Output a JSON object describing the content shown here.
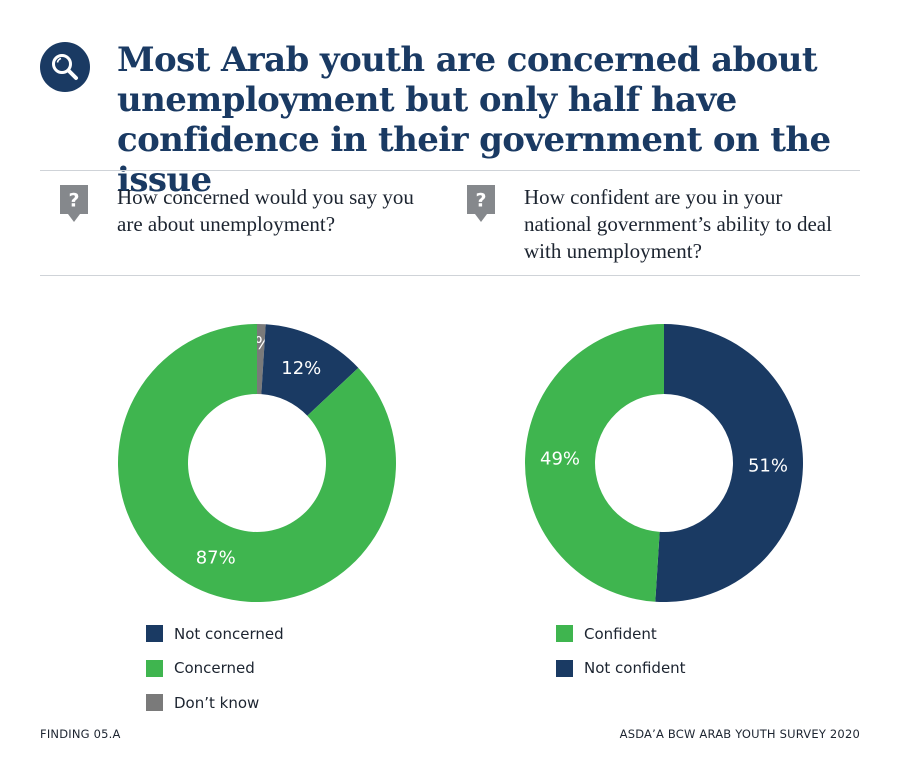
{
  "header": {
    "title_icon": "magnifier-icon",
    "title": "Most Arab youth are concerned about unemployment but only half have confidence in their government on the issue"
  },
  "colors": {
    "navy": "#1a3a63",
    "green": "#3fb54f",
    "grey": "#7a7a7a",
    "white": "#ffffff"
  },
  "questions": [
    {
      "icon": "question-bubble-icon",
      "text": "How concerned would you say you are about unemployment?"
    },
    {
      "icon": "question-bubble-icon",
      "text": "How confident are you in your national government’s ability to deal with unemployment?"
    }
  ],
  "chart_data": [
    {
      "type": "pie",
      "variant": "donut",
      "question": "How concerned would you say you are about unemployment?",
      "slices": [
        {
          "name": "Don't know",
          "value": 1,
          "label": "1%",
          "color": "#7a7a7a"
        },
        {
          "name": "Not concerned",
          "value": 12,
          "label": "12%",
          "color": "#1a3a63"
        },
        {
          "name": "Concerned",
          "value": 87,
          "label": "87%",
          "color": "#3fb54f"
        }
      ],
      "legend": [
        {
          "label": "Not concerned",
          "color": "#1a3a63"
        },
        {
          "label": "Concerned",
          "color": "#3fb54f"
        },
        {
          "label": "Don’t know",
          "color": "#7a7a7a"
        }
      ]
    },
    {
      "type": "pie",
      "variant": "donut",
      "question": "How confident are you in your national government’s ability to deal with unemployment?",
      "slices": [
        {
          "name": "Not confident",
          "value": 51,
          "label": "51%",
          "color": "#1a3a63"
        },
        {
          "name": "Confident",
          "value": 49,
          "label": "49%",
          "color": "#3fb54f"
        }
      ],
      "legend": [
        {
          "label": "Confident",
          "color": "#3fb54f"
        },
        {
          "label": "Not confident",
          "color": "#1a3a63"
        }
      ]
    }
  ],
  "footer": {
    "left": "FINDING 05.A",
    "right": "ASDA’A BCW ARAB YOUTH SURVEY 2020"
  }
}
